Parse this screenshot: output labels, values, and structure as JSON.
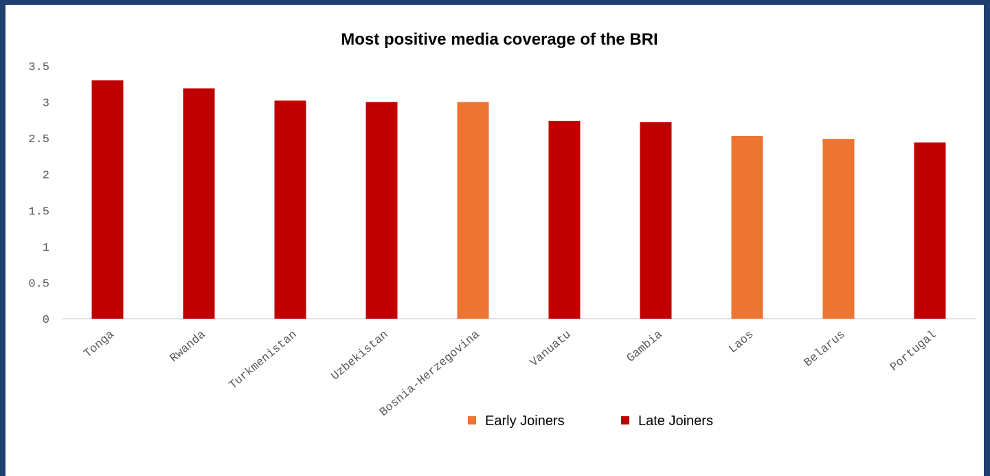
{
  "chart_data": {
    "type": "bar",
    "title": "Most positive media coverage of the BRI",
    "xlabel": "",
    "ylabel": "",
    "ylim": [
      0,
      3.5
    ],
    "yticks": [
      "0",
      "0.5",
      "1",
      "1.5",
      "2",
      "2.5",
      "3",
      "3.5"
    ],
    "grid": false,
    "legend_position": "bottom",
    "categories": [
      "Tonga",
      "Rwanda",
      "Turkmenistan",
      "Uzbekistan",
      "Bosnia-Herzegovina",
      "Vanuatu",
      "Gambia",
      "Laos",
      "Belarus",
      "Portugal"
    ],
    "values": [
      3.3,
      3.19,
      3.02,
      3.0,
      3.0,
      2.74,
      2.72,
      2.53,
      2.49,
      2.44
    ],
    "groups": [
      "Late Joiners",
      "Late Joiners",
      "Late Joiners",
      "Late Joiners",
      "Early Joiners",
      "Late Joiners",
      "Late Joiners",
      "Early Joiners",
      "Early Joiners",
      "Late Joiners"
    ],
    "legend": [
      {
        "name": "Early Joiners",
        "color": "#ed7431"
      },
      {
        "name": "Late Joiners",
        "color": "#c00000"
      }
    ]
  },
  "colors": {
    "frame_border": "#1f3f6e",
    "axis": "#d9d9d9"
  }
}
